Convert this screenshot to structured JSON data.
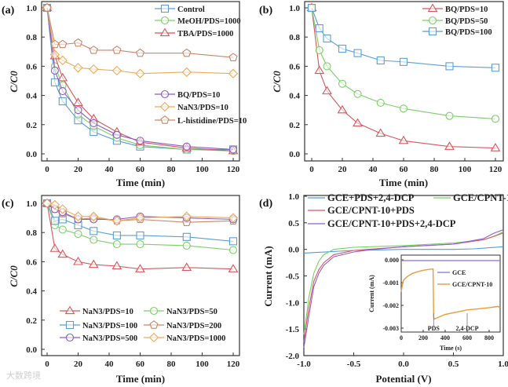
{
  "watermark": "大数跨境",
  "chart_data": [
    {
      "panel": "(a)",
      "type": "line",
      "xlabel": "Time (min)",
      "ylabel": "C/C0",
      "xlim": [
        0,
        120
      ],
      "ylim": [
        0,
        1.0
      ],
      "xticks": [
        0,
        20,
        40,
        60,
        80,
        100,
        120
      ],
      "yticks": [
        0.0,
        0.2,
        0.4,
        0.6,
        0.8,
        1.0
      ],
      "x": [
        0,
        5,
        10,
        20,
        30,
        45,
        60,
        90,
        120
      ],
      "series": [
        {
          "name": "Control",
          "marker": "square",
          "color": "#5b9fd3",
          "values": [
            1,
            0.49,
            0.36,
            0.23,
            0.15,
            0.09,
            0.05,
            0.03,
            0.03
          ]
        },
        {
          "name": "MeOH/PDS=1000",
          "marker": "circle",
          "color": "#7ccf68",
          "values": [
            1,
            0.6,
            0.47,
            0.27,
            0.19,
            0.11,
            0.06,
            0.03,
            0.02
          ]
        },
        {
          "name": "TBA/PDS=1000",
          "marker": "triangle",
          "color": "#d7575c",
          "values": [
            1,
            0.67,
            0.52,
            0.35,
            0.24,
            0.15,
            0.08,
            0.04,
            0.02
          ]
        },
        {
          "name": "BQ/PDS=10",
          "marker": "circle",
          "color": "#8a5cc6",
          "values": [
            1,
            0.57,
            0.43,
            0.3,
            0.21,
            0.13,
            0.09,
            0.05,
            0.03
          ]
        },
        {
          "name": "NaN3/PDS=10",
          "marker": "diamond",
          "color": "#eeaa58",
          "values": [
            1,
            0.68,
            0.64,
            0.59,
            0.58,
            0.57,
            0.55,
            0.56,
            0.55
          ]
        },
        {
          "name": "L-histidine/PDS=10",
          "marker": "pentagon",
          "color": "#c98768",
          "values": [
            1,
            0.75,
            0.75,
            0.76,
            0.71,
            0.71,
            0.69,
            0.69,
            0.66
          ]
        }
      ]
    },
    {
      "panel": "(b)",
      "type": "line",
      "xlabel": "Time (min)",
      "ylabel": "C/C0",
      "xlim": [
        0,
        120
      ],
      "ylim": [
        0,
        1.0
      ],
      "xticks": [
        0,
        20,
        40,
        60,
        80,
        100,
        120
      ],
      "yticks": [
        0.0,
        0.2,
        0.4,
        0.6,
        0.8,
        1.0
      ],
      "x": [
        0,
        5,
        10,
        20,
        30,
        45,
        60,
        90,
        120
      ],
      "series": [
        {
          "name": "BQ/PDS=10",
          "marker": "triangle",
          "color": "#d7575c",
          "values": [
            1,
            0.57,
            0.43,
            0.3,
            0.21,
            0.14,
            0.09,
            0.05,
            0.04
          ]
        },
        {
          "name": "BQ/PDS=50",
          "marker": "circle",
          "color": "#7ccf68",
          "values": [
            1,
            0.71,
            0.6,
            0.48,
            0.41,
            0.35,
            0.31,
            0.26,
            0.24
          ]
        },
        {
          "name": "BQ/PDS=100",
          "marker": "square",
          "color": "#5b9fd3",
          "values": [
            1,
            0.86,
            0.79,
            0.72,
            0.69,
            0.64,
            0.63,
            0.6,
            0.59
          ]
        }
      ]
    },
    {
      "panel": "(c)",
      "type": "line",
      "xlabel": "Time (min)",
      "ylabel": "C/C0",
      "xlim": [
        0,
        120
      ],
      "ylim": [
        0,
        1.0
      ],
      "xticks": [
        0,
        20,
        40,
        60,
        80,
        100,
        120
      ],
      "yticks": [
        0.0,
        0.2,
        0.4,
        0.6,
        0.8,
        1.0
      ],
      "x": [
        0,
        5,
        10,
        20,
        30,
        45,
        60,
        90,
        120
      ],
      "series": [
        {
          "name": "NaN3/PDS=10",
          "marker": "triangle",
          "color": "#d7575c",
          "values": [
            1,
            0.69,
            0.65,
            0.6,
            0.58,
            0.57,
            0.55,
            0.56,
            0.55
          ]
        },
        {
          "name": "NaN3/PDS=50",
          "marker": "circle",
          "color": "#7ccf68",
          "values": [
            1,
            0.85,
            0.82,
            0.79,
            0.75,
            0.72,
            0.72,
            0.71,
            0.68
          ]
        },
        {
          "name": "NaN3/PDS=100",
          "marker": "square",
          "color": "#5b9fd3",
          "values": [
            1,
            0.88,
            0.89,
            0.85,
            0.81,
            0.78,
            0.78,
            0.77,
            0.74
          ]
        },
        {
          "name": "NaN3/PDS=200",
          "marker": "pentagon",
          "color": "#c98768",
          "values": [
            1,
            0.96,
            0.93,
            0.89,
            0.9,
            0.88,
            0.89,
            0.87,
            0.88
          ]
        },
        {
          "name": "NaN3/PDS=500",
          "marker": "circle",
          "color": "#8a5cc6",
          "values": [
            1,
            0.96,
            0.94,
            0.89,
            0.89,
            0.89,
            0.91,
            0.9,
            0.89
          ]
        },
        {
          "name": "NaN3/PDS=1000",
          "marker": "diamond",
          "color": "#eeaa58",
          "values": [
            1,
            0.99,
            0.96,
            0.91,
            0.91,
            0.88,
            0.9,
            0.91,
            0.9
          ]
        }
      ]
    },
    {
      "panel": "(d)",
      "type": "line",
      "xlabel": "Potential (V)",
      "ylabel": "Current (mA)",
      "xlim": [
        -1.0,
        1.0
      ],
      "ylim": [
        -2.0,
        1.0
      ],
      "xticks": [
        -1.0,
        -0.5,
        0.0,
        0.5,
        1.0
      ],
      "yticks": [
        -2.0,
        -1.5,
        -1.0,
        -0.5,
        0.0,
        0.5,
        1.0
      ],
      "series": [
        {
          "name": "GCE+PDS+2,4-DCP",
          "color": "#4d9ed6",
          "x": [
            -1,
            -0.5,
            0,
            0.5,
            0.7,
            1.0
          ],
          "values": [
            -0.07,
            -0.02,
            0.0,
            0.0,
            0.01,
            0.05
          ]
        },
        {
          "name": "GCE/CPNT-10",
          "color": "#6fd35c",
          "x": [
            -1,
            -0.97,
            -0.95,
            -0.9,
            -0.85,
            -0.8,
            -0.7,
            -0.5,
            0,
            0.5,
            0.8,
            0.9,
            1.0
          ],
          "values": [
            -1.6,
            -1.2,
            -0.9,
            -0.45,
            -0.22,
            -0.1,
            0.0,
            0.04,
            0.07,
            0.12,
            0.18,
            0.24,
            0.33
          ]
        },
        {
          "name": "GCE/CPNT-10+PDS",
          "color": "#d7575c",
          "x": [
            -1,
            -0.97,
            -0.95,
            -0.9,
            -0.85,
            -0.8,
            -0.7,
            -0.5,
            0,
            0.5,
            0.8,
            0.9,
            1.0
          ],
          "values": [
            -1.75,
            -1.35,
            -1.1,
            -0.6,
            -0.38,
            -0.25,
            -0.1,
            -0.02,
            0.05,
            0.1,
            0.18,
            0.24,
            0.31
          ]
        },
        {
          "name": "GCE/CPNT-10+PDS+2,4-DCP",
          "color": "#8f5fd0",
          "x": [
            -1,
            -0.97,
            -0.95,
            -0.9,
            -0.85,
            -0.8,
            -0.7,
            -0.5,
            -0.3,
            0,
            0.5,
            0.8,
            0.9,
            1.0
          ],
          "values": [
            -1.85,
            -1.5,
            -1.25,
            -0.7,
            -0.45,
            -0.3,
            -0.14,
            -0.05,
            0.0,
            0.05,
            0.1,
            0.2,
            0.3,
            0.37
          ]
        }
      ],
      "inset": {
        "xlabel": "Time (s)",
        "ylabel": "Current (mA)",
        "xlim": [
          0,
          900
        ],
        "ylim": [
          -0.003,
          0.0
        ],
        "xticks": [
          0,
          200,
          400,
          600,
          800
        ],
        "yticks": [
          "0.000",
          "-0.001",
          "-0.002",
          "-0.003"
        ],
        "ytick_values": [
          0,
          -0.001,
          -0.002,
          -0.003
        ],
        "annotations": [
          {
            "text": "PDS",
            "x": 295
          },
          {
            "text": "2,4-DCP",
            "x": 600
          }
        ],
        "series": [
          {
            "name": "GCE",
            "color": "#8f7fe0",
            "x": [
              0,
              900
            ],
            "values": [
              -3e-05,
              -3e-05
            ]
          },
          {
            "name": "GCE/CPNT-10",
            "color": "#ef9a3a",
            "x": [
              0,
              10,
              20,
              50,
              100,
              150,
              200,
              250,
              290,
              295,
              300,
              350,
              400,
              500,
              600,
              700,
              800,
              880,
              900
            ],
            "values": [
              -0.0014,
              -0.0011,
              -0.0009,
              -0.00075,
              -0.0006,
              -0.00052,
              -0.00046,
              -0.00042,
              -0.0004,
              -0.0025,
              -0.0026,
              -0.0025,
              -0.0024,
              -0.0023,
              -0.0022,
              -0.00215,
              -0.0021,
              -0.00205,
              -0.0021
            ]
          }
        ]
      }
    }
  ]
}
